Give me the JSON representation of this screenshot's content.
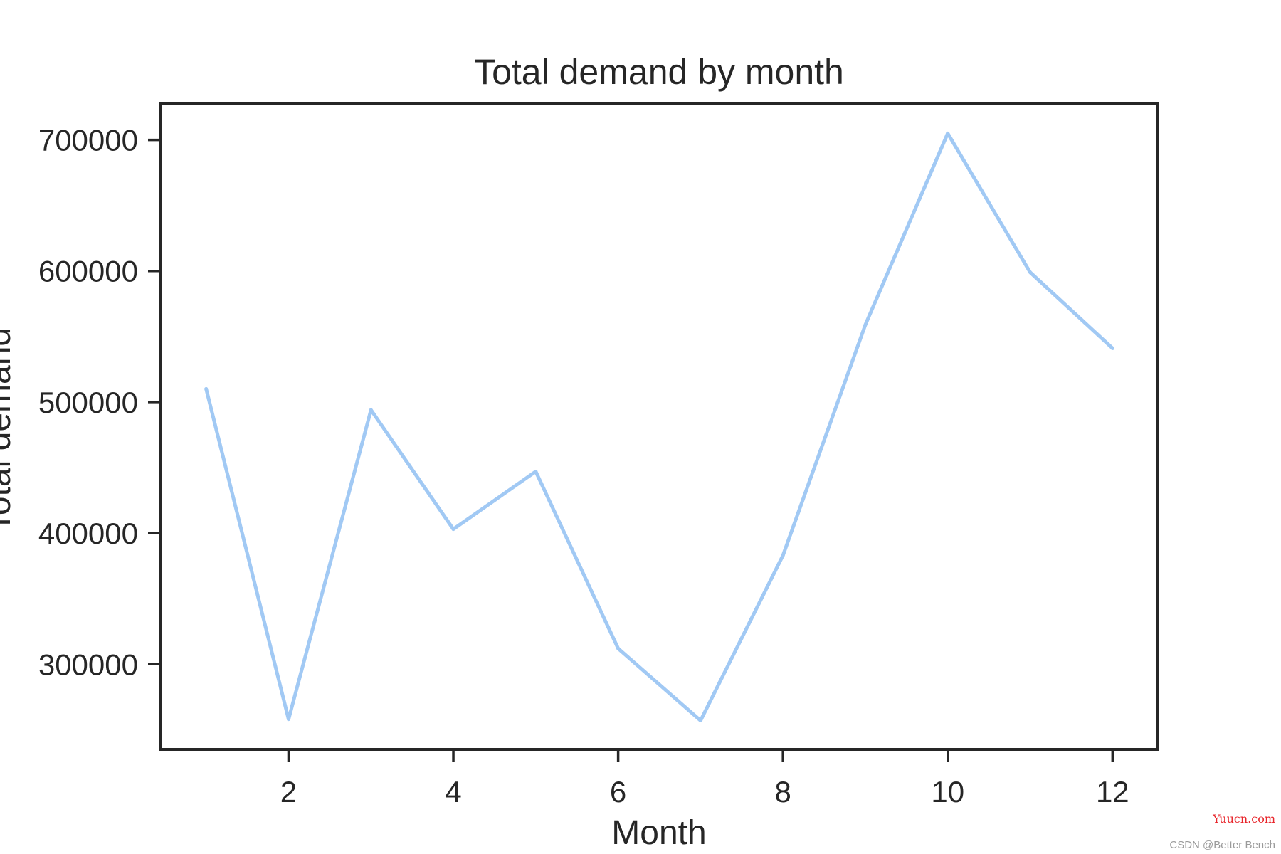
{
  "chart_data": {
    "type": "line",
    "title": "Total demand by month",
    "xlabel": "Month",
    "ylabel": "Total demand",
    "x": [
      1,
      2,
      3,
      4,
      5,
      6,
      7,
      8,
      9,
      10,
      11,
      12
    ],
    "y": [
      510000,
      258000,
      494000,
      403000,
      447000,
      312000,
      257000,
      383000,
      559000,
      705000,
      599000,
      541000
    ],
    "xlim": [
      0.45,
      12.55
    ],
    "ylim": [
      235000,
      728000
    ],
    "xticks": [
      2,
      4,
      6,
      8,
      10,
      12
    ],
    "yticks": [
      300000,
      400000,
      500000,
      600000,
      700000
    ],
    "xtick_labels": [
      "2",
      "4",
      "6",
      "8",
      "10",
      "12"
    ],
    "ytick_labels": [
      "300000",
      "400000",
      "500000",
      "600000",
      "700000"
    ],
    "grid": false,
    "line_color": "#a1c9f4",
    "axis_color": "#262626"
  },
  "watermarks": {
    "site": "Yuucn.com",
    "author": "CSDN @Better Bench"
  }
}
